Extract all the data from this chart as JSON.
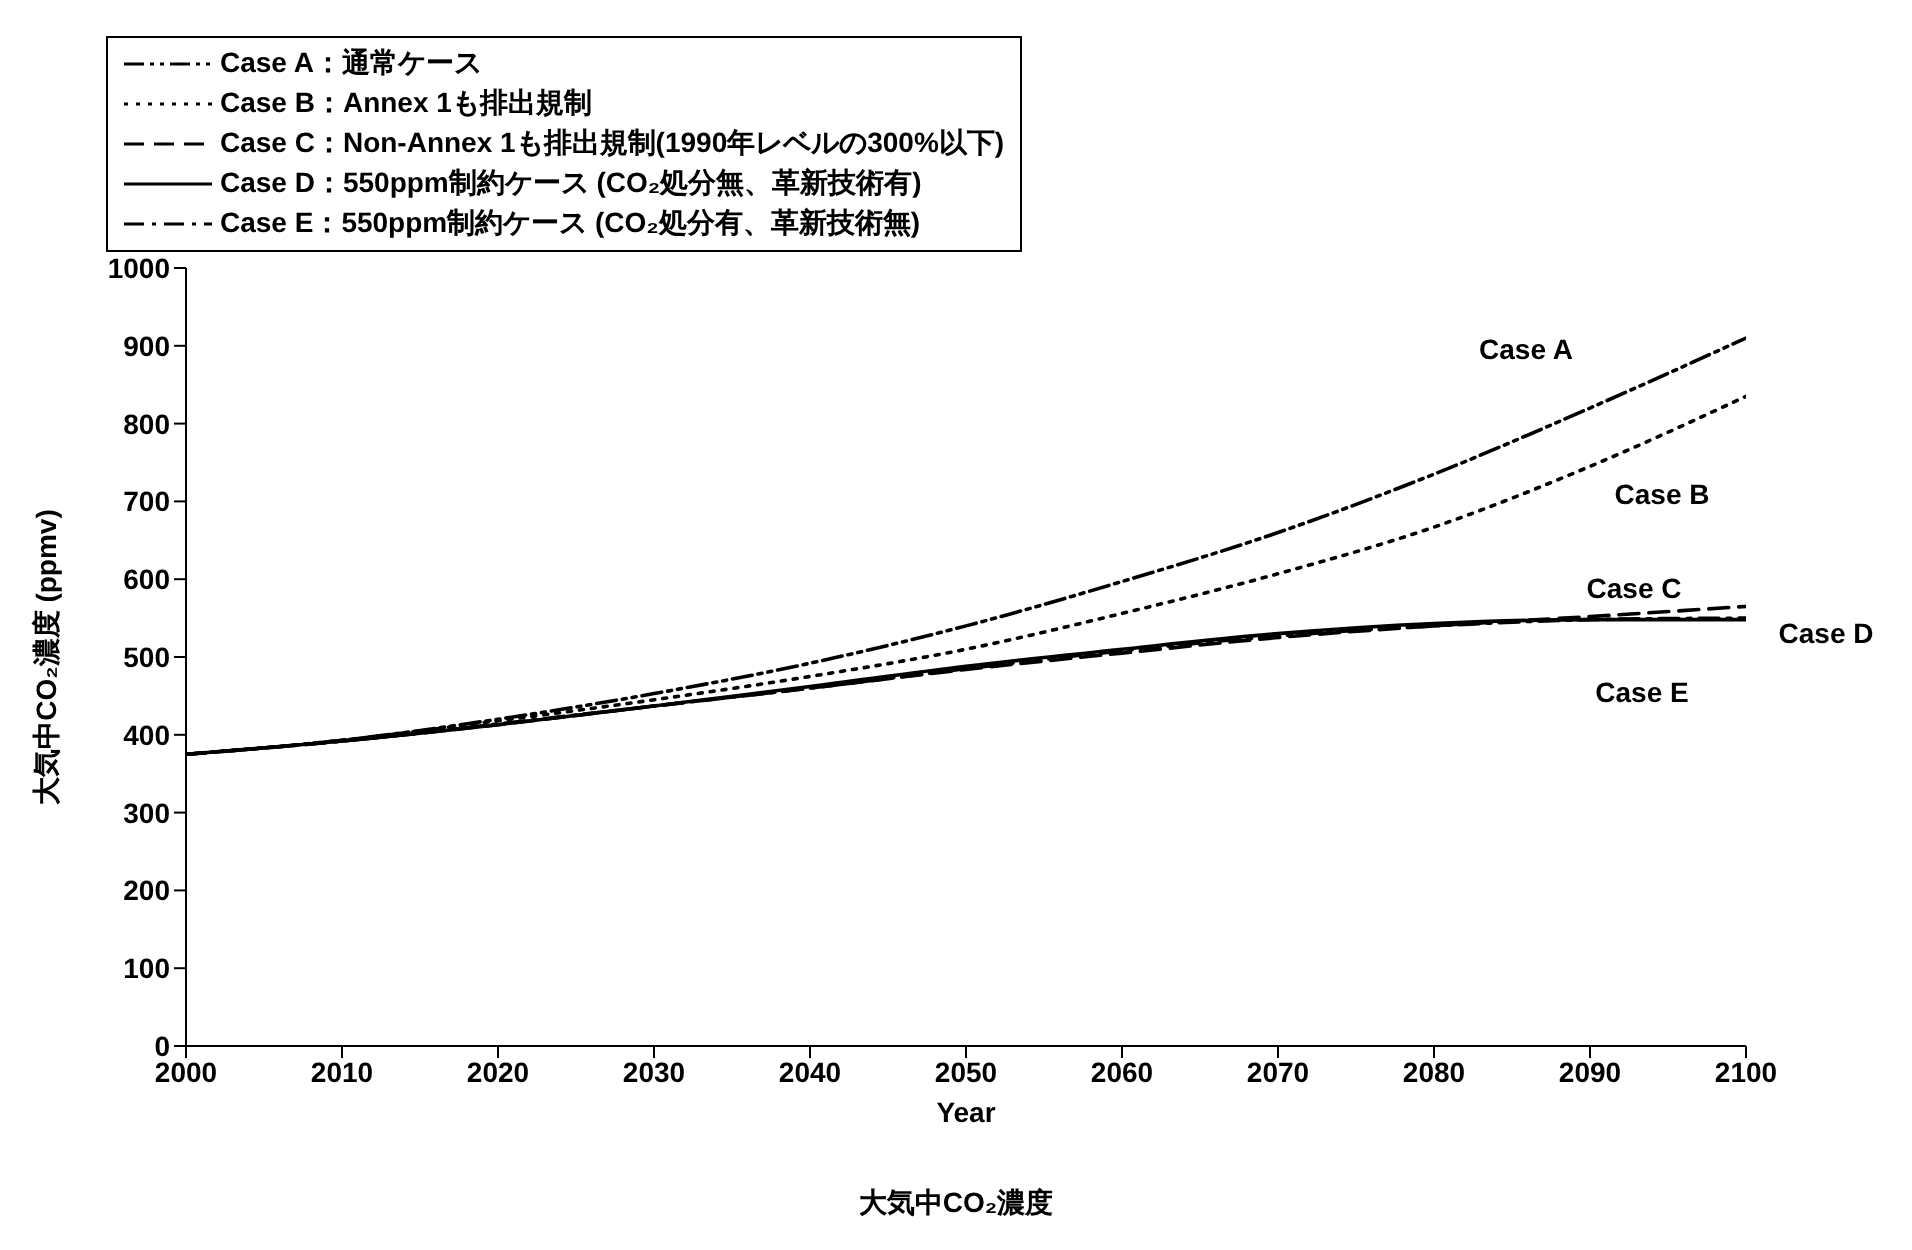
{
  "chart_data": {
    "type": "line",
    "title": "大気中CO₂濃度",
    "xlabel": "Year",
    "ylabel": "大気中CO₂濃度 (ppmv)",
    "x": [
      2000,
      2010,
      2020,
      2030,
      2040,
      2050,
      2060,
      2070,
      2080,
      2090,
      2100
    ],
    "series": [
      {
        "name": "Case A：通常ケース",
        "color": "#000000",
        "line_style": "dashdotdot",
        "values": [
          375,
          393,
          420,
          453,
          492,
          540,
          597,
          660,
          735,
          820,
          910
        ]
      },
      {
        "name": "Case B：Annex 1も排出規制",
        "color": "#000000",
        "line_style": "dotted",
        "values": [
          375,
          393,
          418,
          445,
          475,
          510,
          556,
          607,
          667,
          745,
          835
        ]
      },
      {
        "name": "Case C：Non-Annex 1も排出規制(1990年レベルの300%以下)",
        "color": "#000000",
        "line_style": "dashed",
        "values": [
          375,
          392,
          413,
          437,
          460,
          484,
          505,
          525,
          540,
          552,
          565
        ]
      },
      {
        "name": "Case D：550ppm制約ケース (CO₂処分無、革新技術有)",
        "color": "#000000",
        "line_style": "solid",
        "values": [
          375,
          392,
          413,
          437,
          462,
          488,
          510,
          530,
          543,
          548,
          548
        ]
      },
      {
        "name": "Case E：550ppm制約ケース (CO₂処分有、革新技術無)",
        "color": "#000000",
        "line_style": "dashdot",
        "values": [
          375,
          392,
          414,
          437,
          460,
          485,
          508,
          527,
          540,
          548,
          550
        ]
      }
    ],
    "annotations": [
      "Case A",
      "Case B",
      "Case C",
      "Case D",
      "Case E"
    ],
    "xlim": [
      2000,
      2100
    ],
    "xticks": [
      2000,
      2010,
      2020,
      2030,
      2040,
      2050,
      2060,
      2070,
      2080,
      2090,
      2100
    ],
    "ylim": [
      0,
      1000
    ],
    "yticks": [
      0,
      100,
      200,
      300,
      400,
      500,
      600,
      700,
      800,
      900,
      1000
    ],
    "grid": false,
    "legend": "top left"
  }
}
